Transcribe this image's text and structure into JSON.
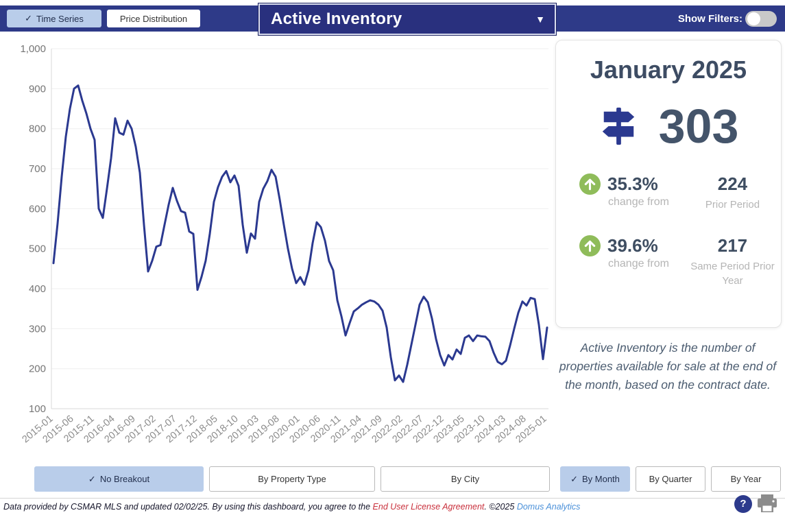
{
  "header": {
    "check_icon": "✓",
    "time_series_label": "Time Series",
    "price_distribution_label": "Price Distribution",
    "metric_dropdown_value": "Active Inventory",
    "caret_icon": "▼",
    "show_filters_label": "Show Filters:"
  },
  "panel": {
    "title": "January 2025",
    "value": "303",
    "stats": [
      {
        "percent": "35.3%",
        "direction": "up",
        "label": "change from",
        "compare_value": "224",
        "compare_label": "Prior Period"
      },
      {
        "percent": "39.6%",
        "direction": "up",
        "label": "change from",
        "compare_value": "217",
        "compare_label": "Same Period Prior Year"
      }
    ],
    "description": "Active Inventory is the number of properties available for sale at the end of the month, based on the contract date."
  },
  "breakout_buttons": [
    {
      "label": "No Breakout",
      "selected": true
    },
    {
      "label": "By Property Type",
      "selected": false
    },
    {
      "label": "By City",
      "selected": false
    }
  ],
  "period_buttons": [
    {
      "label": "By Month",
      "selected": true
    },
    {
      "label": "By Quarter",
      "selected": false
    },
    {
      "label": "By Year",
      "selected": false
    }
  ],
  "footer": {
    "text_1": "Data provided by CSMAR MLS and updated 02/02/25.  By using this dashboard, you agree to the ",
    "eula_link": "End User License Agreement",
    "text_2": ".  ©2025 ",
    "brand_link": "Domus Analytics",
    "help_glyph": "?"
  },
  "colors": {
    "navy": "#2e3a88",
    "line": "#2b3990",
    "selected_button": "#b9cdea",
    "green_up": "#8fbc5a",
    "slate_text": "#3e4d61"
  },
  "chart_data": {
    "type": "line",
    "title": "Active Inventory time series, monthly 2015-01 to 2025-01",
    "x_unit": "month",
    "x_range": [
      "2015-01",
      "2025-01"
    ],
    "x_tick_labels": [
      "2015-01",
      "2015-06",
      "2015-11",
      "2016-04",
      "2016-09",
      "2017-02",
      "2017-07",
      "2017-12",
      "2018-05",
      "2018-10",
      "2019-03",
      "2019-08",
      "2020-01",
      "2020-06",
      "2020-11",
      "2021-04",
      "2021-09",
      "2022-02",
      "2022-07",
      "2022-12",
      "2023-05",
      "2023-10",
      "2024-03",
      "2024-08",
      "2025-01"
    ],
    "y_tick_values": [
      100,
      200,
      300,
      400,
      500,
      600,
      700,
      800,
      900,
      1000
    ],
    "y_tick_labels": [
      "100",
      "200",
      "300",
      "400",
      "500",
      "600",
      "700",
      "800",
      "900",
      "1,000"
    ],
    "ylim": [
      100,
      1000
    ],
    "grid": true,
    "legend": false,
    "line_color": "#2b3990",
    "values": [
      464,
      563,
      680,
      780,
      850,
      900,
      908,
      870,
      838,
      800,
      772,
      600,
      577,
      650,
      726,
      826,
      790,
      785,
      820,
      800,
      755,
      690,
      560,
      443,
      470,
      505,
      509,
      560,
      610,
      652,
      620,
      594,
      590,
      543,
      537,
      397,
      430,
      470,
      537,
      617,
      654,
      680,
      694,
      666,
      683,
      657,
      560,
      490,
      538,
      525,
      617,
      650,
      669,
      697,
      680,
      623,
      560,
      500,
      450,
      414,
      429,
      410,
      446,
      514,
      566,
      554,
      520,
      469,
      446,
      371,
      331,
      283,
      314,
      343,
      351,
      360,
      366,
      371,
      368,
      360,
      345,
      303,
      229,
      171,
      183,
      167,
      210,
      260,
      310,
      360,
      380,
      366,
      326,
      274,
      234,
      208,
      234,
      223,
      248,
      237,
      277,
      283,
      269,
      283,
      281,
      280,
      269,
      240,
      217,
      211,
      220,
      258,
      300,
      340,
      368,
      358,
      377,
      374,
      310,
      224,
      303
    ]
  }
}
